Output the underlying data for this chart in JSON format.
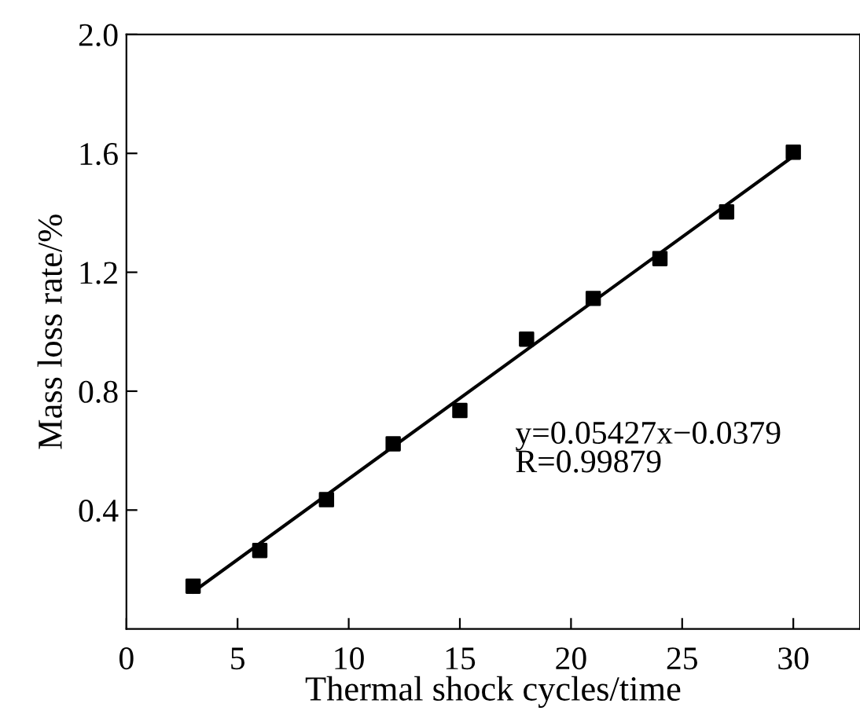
{
  "chart_data": {
    "type": "scatter",
    "xlabel": "Thermal shock cycles/time",
    "ylabel": "Mass loss rate/%",
    "x": [
      3,
      6,
      9,
      12,
      15,
      18,
      21,
      24,
      27,
      30
    ],
    "series": [
      {
        "color": "#000000",
        "marker": "square",
        "values": [
          0.144,
          0.264,
          0.435,
          0.623,
          0.735,
          0.975,
          1.112,
          1.246,
          1.403,
          1.604
        ]
      },
      {
        "type": "line",
        "color": "#000000",
        "line_style": "solid",
        "x": [
          3,
          30
        ],
        "values": [
          0.125,
          1.59
        ]
      }
    ],
    "xlim": [
      0,
      33
    ],
    "ylim": [
      0,
      2.0
    ],
    "xticks": [
      {
        "value": 0,
        "label": "0"
      },
      5,
      10,
      15,
      20,
      25,
      30
    ],
    "yticks": [
      {
        "value": 0.4,
        "label": "0.4"
      },
      {
        "value": 0.8,
        "label": "0.8"
      },
      {
        "value": 1.2,
        "label": "1.2"
      },
      {
        "value": 1.6,
        "label": "1.6"
      },
      {
        "value": 2.0,
        "label": "2.0"
      }
    ],
    "grid": false,
    "legend": false,
    "annotations": [
      "y=0.05427x−0.0379\nR=0.99879"
    ]
  }
}
